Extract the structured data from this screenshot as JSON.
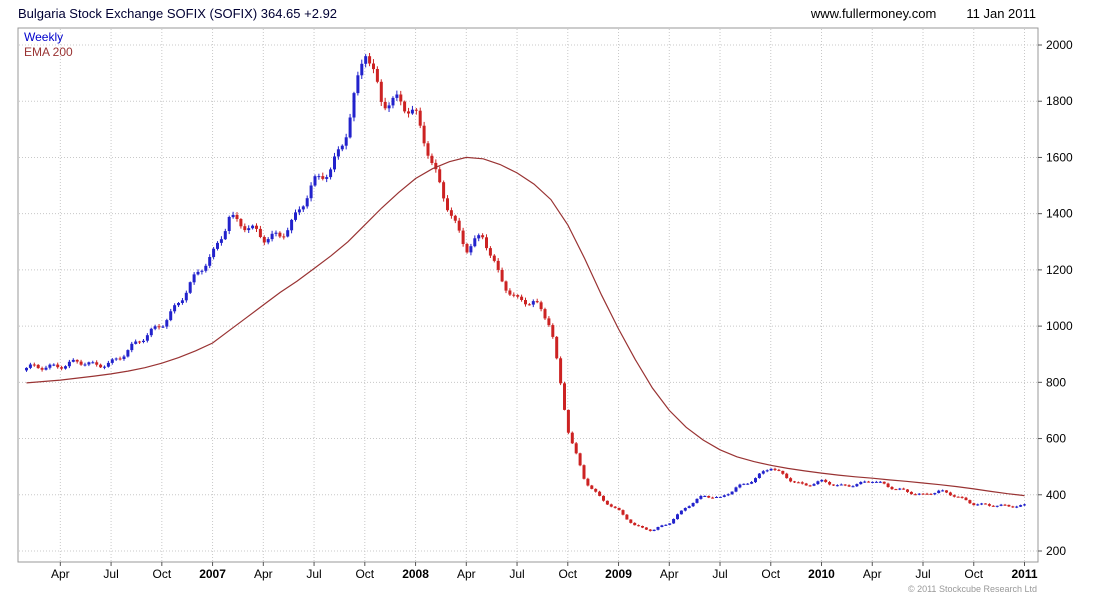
{
  "header": {
    "title": "Bulgaria Stock Exchange SOFIX (SOFIX) 364.65 +2.92",
    "website": "www.fullermoney.com",
    "date": "11 Jan 2011"
  },
  "legend": {
    "series1": "Weekly",
    "series2": "EMA 200"
  },
  "footer": {
    "copyright": "© 2011 Stockcube Research Ltd"
  },
  "colors": {
    "up": "#2222cc",
    "down": "#cc2222",
    "ema": "#993333",
    "grid": "#c8c8c8",
    "border": "#999999",
    "axis_text": "#000000",
    "legend_weekly": "#0000cc",
    "legend_ema": "#993333"
  },
  "chart_data": {
    "type": "candlestick",
    "frequency": "weekly",
    "title": "Bulgaria Stock Exchange SOFIX (SOFIX) 364.65 +2.92",
    "xlabel": "",
    "ylabel": "",
    "ylim": [
      200,
      2000
    ],
    "yticks": [
      200,
      400,
      600,
      800,
      1000,
      1200,
      1400,
      1600,
      1800,
      2000
    ],
    "grid": true,
    "legend_position": "top-left",
    "last_price": 364.65,
    "change": "+2.92",
    "xticks": [
      {
        "label": "Apr",
        "month_index": 2,
        "bold": false
      },
      {
        "label": "Jul",
        "month_index": 5,
        "bold": false
      },
      {
        "label": "Oct",
        "month_index": 8,
        "bold": false
      },
      {
        "label": "2007",
        "month_index": 11,
        "bold": true
      },
      {
        "label": "Apr",
        "month_index": 14,
        "bold": false
      },
      {
        "label": "Jul",
        "month_index": 17,
        "bold": false
      },
      {
        "label": "Oct",
        "month_index": 20,
        "bold": false
      },
      {
        "label": "2008",
        "month_index": 23,
        "bold": true
      },
      {
        "label": "Apr",
        "month_index": 26,
        "bold": false
      },
      {
        "label": "Jul",
        "month_index": 29,
        "bold": false
      },
      {
        "label": "Oct",
        "month_index": 32,
        "bold": false
      },
      {
        "label": "2009",
        "month_index": 35,
        "bold": true
      },
      {
        "label": "Apr",
        "month_index": 38,
        "bold": false
      },
      {
        "label": "Jul",
        "month_index": 41,
        "bold": false
      },
      {
        "label": "Oct",
        "month_index": 44,
        "bold": false
      },
      {
        "label": "2010",
        "month_index": 47,
        "bold": true
      },
      {
        "label": "Apr",
        "month_index": 50,
        "bold": false
      },
      {
        "label": "Jul",
        "month_index": 53,
        "bold": false
      },
      {
        "label": "Oct",
        "month_index": 56,
        "bold": false
      },
      {
        "label": "2011",
        "month_index": 59,
        "bold": true
      }
    ],
    "months": [
      "2006-02",
      "2006-03",
      "2006-04",
      "2006-05",
      "2006-06",
      "2006-07",
      "2006-08",
      "2006-09",
      "2006-10",
      "2006-11",
      "2006-12",
      "2007-01",
      "2007-02",
      "2007-03",
      "2007-04",
      "2007-05",
      "2007-06",
      "2007-07",
      "2007-08",
      "2007-09",
      "2007-10",
      "2007-11",
      "2007-12",
      "2008-01",
      "2008-02",
      "2008-03",
      "2008-04",
      "2008-05",
      "2008-06",
      "2008-07",
      "2008-08",
      "2008-09",
      "2008-10",
      "2008-11",
      "2008-12",
      "2009-01",
      "2009-02",
      "2009-03",
      "2009-04",
      "2009-05",
      "2009-06",
      "2009-07",
      "2009-08",
      "2009-09",
      "2009-10",
      "2009-11",
      "2009-12",
      "2010-01",
      "2010-02",
      "2010-03",
      "2010-04",
      "2010-05",
      "2010-06",
      "2010-07",
      "2010-08",
      "2010-09",
      "2010-10",
      "2010-11",
      "2010-12",
      "2011-01"
    ],
    "series": [
      {
        "name": "SOFIX weekly",
        "style": "candlestick",
        "sampling": "monthly anchor closes estimated from chart",
        "values": [
          845,
          855,
          865,
          870,
          855,
          875,
          915,
          955,
          1010,
          1090,
          1170,
          1250,
          1400,
          1350,
          1305,
          1330,
          1400,
          1500,
          1560,
          1720,
          1980,
          1790,
          1820,
          1750,
          1560,
          1420,
          1280,
          1310,
          1170,
          1100,
          1080,
          1000,
          640,
          450,
          380,
          345,
          290,
          270,
          300,
          360,
          395,
          385,
          430,
          455,
          495,
          460,
          435,
          445,
          430,
          440,
          450,
          425,
          415,
          400,
          410,
          395,
          370,
          360,
          358,
          364.65
        ]
      },
      {
        "name": "EMA 200",
        "style": "line",
        "sampling": "monthly values estimated from chart",
        "values": [
          798,
          803,
          808,
          815,
          822,
          830,
          840,
          852,
          868,
          888,
          912,
          940,
          985,
          1030,
          1075,
          1120,
          1160,
          1205,
          1250,
          1300,
          1360,
          1420,
          1475,
          1525,
          1560,
          1585,
          1600,
          1595,
          1575,
          1545,
          1505,
          1450,
          1360,
          1240,
          1110,
          990,
          880,
          780,
          700,
          640,
          595,
          560,
          535,
          518,
          505,
          494,
          485,
          477,
          470,
          464,
          459,
          453,
          448,
          442,
          436,
          429,
          421,
          412,
          404,
          397
        ]
      }
    ]
  }
}
